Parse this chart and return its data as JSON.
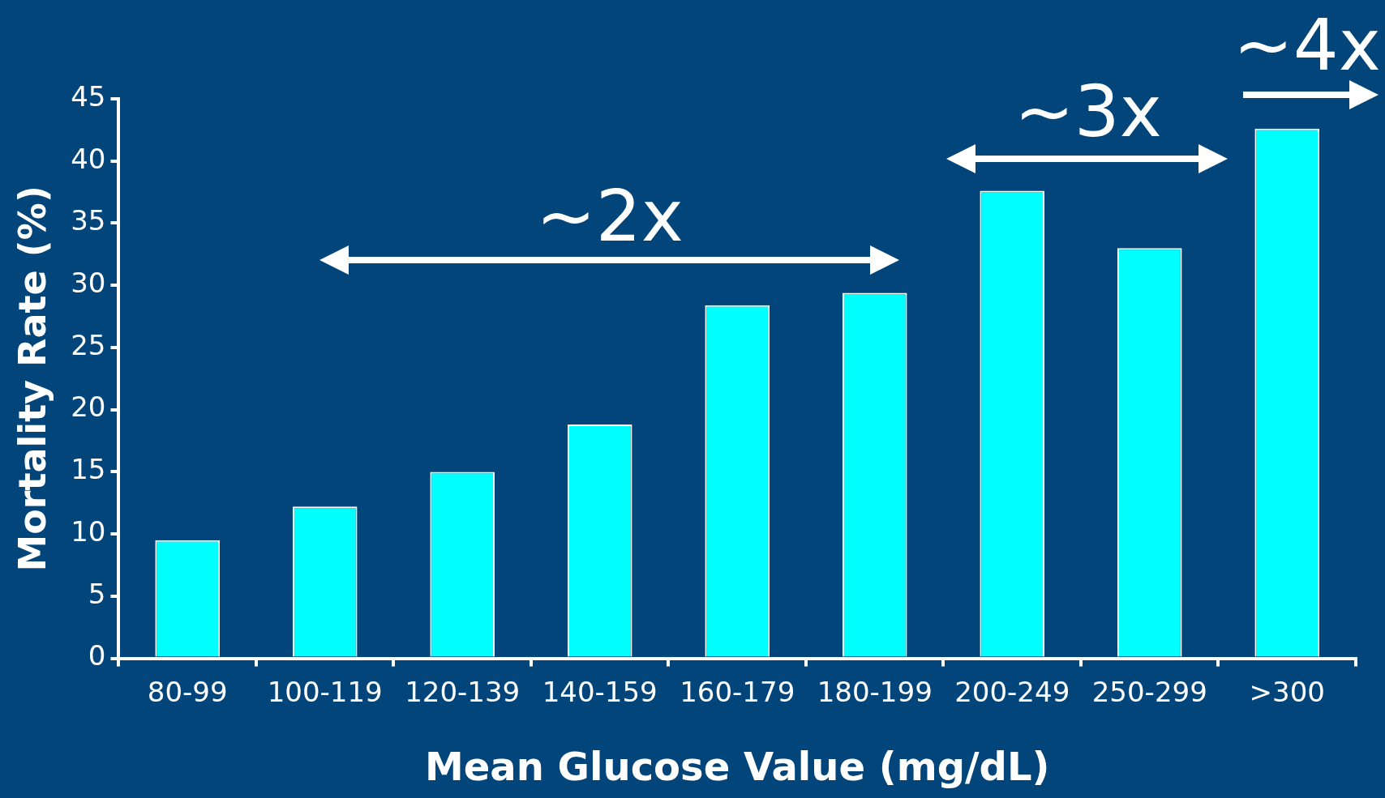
{
  "chart_data": {
    "type": "bar",
    "xlabel": "Mean Glucose Value (mg/dL)",
    "ylabel": "Mortality Rate (%)",
    "categories": [
      "80-99",
      "100-119",
      "120-139",
      "140-159",
      "160-179",
      "180-199",
      "200-249",
      "250-299",
      ">300"
    ],
    "values": [
      9.5,
      12.2,
      15.0,
      18.8,
      28.4,
      29.4,
      37.6,
      33.0,
      42.6
    ],
    "color": "#00ffff",
    "ylim": [
      0,
      45
    ],
    "yticks": [
      0,
      5,
      10,
      15,
      20,
      25,
      30,
      35,
      40,
      45
    ],
    "grid": false,
    "legend": false,
    "annotations": [
      "~2x",
      "~3x",
      "~4x"
    ]
  }
}
